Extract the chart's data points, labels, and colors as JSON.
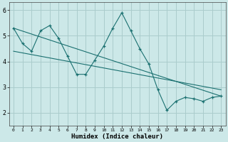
{
  "xlabel": "Humidex (Indice chaleur)",
  "bg_color": "#cce8e8",
  "grid_color": "#aacccc",
  "line_color": "#1a7070",
  "xlim": [
    -0.5,
    23.5
  ],
  "ylim": [
    1.5,
    6.3
  ],
  "yticks": [
    2,
    3,
    4,
    5,
    6
  ],
  "xticks": [
    0,
    1,
    2,
    3,
    4,
    5,
    6,
    7,
    8,
    9,
    10,
    11,
    12,
    13,
    14,
    15,
    16,
    17,
    18,
    19,
    20,
    21,
    22,
    23
  ],
  "zigzag_x": [
    0,
    1,
    2,
    3,
    4,
    5,
    6,
    7,
    8,
    9,
    10,
    11,
    12,
    13,
    14,
    15,
    16,
    17,
    18,
    19,
    20,
    21,
    22,
    23
  ],
  "zigzag_y": [
    5.3,
    4.7,
    4.4,
    5.2,
    5.4,
    4.9,
    4.2,
    3.5,
    3.5,
    4.05,
    4.6,
    5.3,
    5.9,
    5.2,
    4.5,
    3.9,
    2.9,
    2.1,
    2.45,
    2.6,
    2.55,
    2.45,
    2.6,
    2.65
  ],
  "trend1_x": [
    0,
    23
  ],
  "trend1_y": [
    5.3,
    2.65
  ],
  "trend2_x": [
    0,
    23
  ],
  "trend2_y": [
    4.4,
    2.9
  ]
}
